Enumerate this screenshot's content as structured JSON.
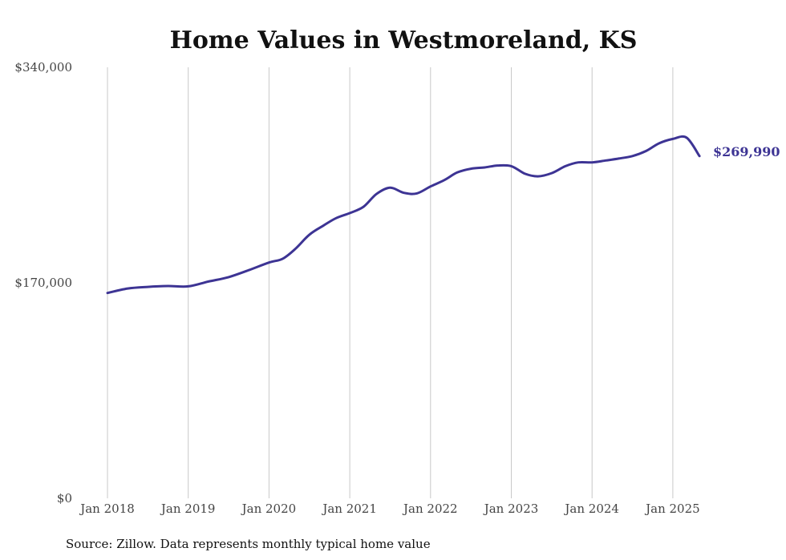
{
  "chart_data": {
    "type": "line",
    "title": "Home Values in Westmoreland, KS",
    "xlabel": "",
    "ylabel": "",
    "ylim": [
      0,
      340000
    ],
    "y_ticks": [
      {
        "value": 0,
        "label": "$0"
      },
      {
        "value": 170000,
        "label": "$170,000"
      },
      {
        "value": 340000,
        "label": "$340,000"
      }
    ],
    "x_ticks": [
      {
        "value": 2018,
        "label": "Jan 2018"
      },
      {
        "value": 2019,
        "label": "Jan 2019"
      },
      {
        "value": 2020,
        "label": "Jan 2020"
      },
      {
        "value": 2021,
        "label": "Jan 2021"
      },
      {
        "value": 2022,
        "label": "Jan 2022"
      },
      {
        "value": 2023,
        "label": "Jan 2023"
      },
      {
        "value": 2024,
        "label": "Jan 2024"
      },
      {
        "value": 2025,
        "label": "Jan 2025"
      }
    ],
    "xlim": [
      2018,
      2025.42
    ],
    "grid": "vertical",
    "line_color": "#3d3494",
    "series": [
      {
        "points": [
          [
            2018.0,
            162000
          ],
          [
            2018.25,
            165500
          ],
          [
            2018.5,
            166800
          ],
          [
            2018.75,
            167500
          ],
          [
            2019.0,
            167200
          ],
          [
            2019.25,
            171000
          ],
          [
            2019.5,
            174500
          ],
          [
            2019.75,
            180000
          ],
          [
            2020.0,
            186000
          ],
          [
            2020.17,
            189000
          ],
          [
            2020.33,
            197000
          ],
          [
            2020.5,
            208000
          ],
          [
            2020.67,
            215000
          ],
          [
            2020.83,
            221000
          ],
          [
            2021.0,
            225000
          ],
          [
            2021.17,
            230000
          ],
          [
            2021.33,
            240000
          ],
          [
            2021.5,
            245000
          ],
          [
            2021.67,
            241000
          ],
          [
            2021.83,
            240500
          ],
          [
            2022.0,
            246000
          ],
          [
            2022.17,
            251000
          ],
          [
            2022.33,
            257000
          ],
          [
            2022.5,
            260000
          ],
          [
            2022.67,
            261000
          ],
          [
            2022.83,
            262500
          ],
          [
            2023.0,
            262000
          ],
          [
            2023.17,
            256000
          ],
          [
            2023.33,
            254000
          ],
          [
            2023.5,
            256500
          ],
          [
            2023.67,
            262000
          ],
          [
            2023.83,
            265000
          ],
          [
            2024.0,
            265000
          ],
          [
            2024.17,
            266500
          ],
          [
            2024.33,
            268000
          ],
          [
            2024.5,
            270000
          ],
          [
            2024.67,
            274000
          ],
          [
            2024.83,
            280000
          ],
          [
            2025.0,
            283500
          ],
          [
            2025.17,
            284500
          ],
          [
            2025.33,
            269990
          ]
        ],
        "end_label": "$269,990"
      }
    ]
  },
  "footer": {
    "source": "Source: Zillow. Data represents monthly typical home value"
  }
}
